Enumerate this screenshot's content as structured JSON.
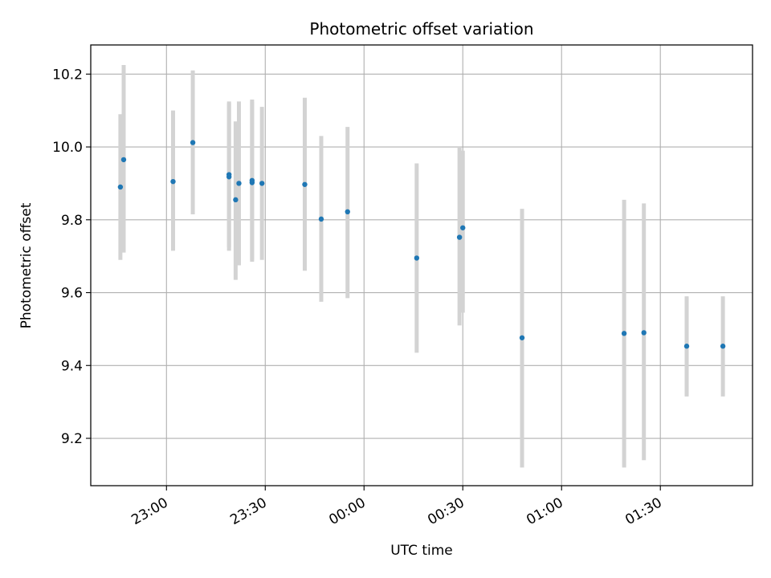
{
  "chart_data": {
    "type": "scatter",
    "title": "Photometric offset variation",
    "xlabel": "UTC time",
    "ylabel": "Photometric offset",
    "grid": true,
    "x_tick_labels": [
      "23:00",
      "23:30",
      "00:00",
      "00:30",
      "01:00",
      "01:30"
    ],
    "y_tick_labels": [
      "9.2",
      "9.4",
      "9.6",
      "9.8",
      "10.0",
      "10.2"
    ],
    "y_ticks": [
      9.2,
      9.4,
      9.6,
      9.8,
      10.0,
      10.2
    ],
    "xlim": [
      "22:37",
      "01:58"
    ],
    "ylim": [
      9.07,
      10.28
    ],
    "errorbar_color": "#d3d3d3",
    "marker_color": "#1f77b4",
    "points": [
      {
        "time": "22:46",
        "y": 9.89,
        "ylow": 9.69,
        "yhigh": 10.09
      },
      {
        "time": "22:47",
        "y": 9.965,
        "ylow": 9.71,
        "yhigh": 10.225
      },
      {
        "time": "23:02",
        "y": 9.905,
        "ylow": 9.715,
        "yhigh": 10.1
      },
      {
        "time": "23:08",
        "y": 10.012,
        "ylow": 9.815,
        "yhigh": 10.21
      },
      {
        "time": "23:19",
        "y": 9.918,
        "ylow": 9.715,
        "yhigh": 10.12
      },
      {
        "time": "23:19",
        "y": 9.924,
        "ylow": 9.725,
        "yhigh": 10.125
      },
      {
        "time": "23:21",
        "y": 9.855,
        "ylow": 9.635,
        "yhigh": 10.07
      },
      {
        "time": "23:22",
        "y": 9.9,
        "ylow": 9.675,
        "yhigh": 10.125
      },
      {
        "time": "23:26",
        "y": 9.902,
        "ylow": 9.685,
        "yhigh": 10.125
      },
      {
        "time": "23:26",
        "y": 9.908,
        "ylow": 9.69,
        "yhigh": 10.13
      },
      {
        "time": "23:29",
        "y": 9.9,
        "ylow": 9.69,
        "yhigh": 10.11
      },
      {
        "time": "23:42",
        "y": 9.897,
        "ylow": 9.66,
        "yhigh": 10.135
      },
      {
        "time": "23:47",
        "y": 9.802,
        "ylow": 9.575,
        "yhigh": 10.03
      },
      {
        "time": "23:55",
        "y": 9.822,
        "ylow": 9.585,
        "yhigh": 10.055
      },
      {
        "time": "00:16",
        "y": 9.695,
        "ylow": 9.435,
        "yhigh": 9.955
      },
      {
        "time": "00:29",
        "y": 9.752,
        "ylow": 9.51,
        "yhigh": 10.0
      },
      {
        "time": "00:30",
        "y": 9.778,
        "ylow": 9.545,
        "yhigh": 9.99
      },
      {
        "time": "00:48",
        "y": 9.476,
        "ylow": 9.12,
        "yhigh": 9.83
      },
      {
        "time": "01:19",
        "y": 9.488,
        "ylow": 9.12,
        "yhigh": 9.855
      },
      {
        "time": "01:25",
        "y": 9.49,
        "ylow": 9.14,
        "yhigh": 9.845
      },
      {
        "time": "01:38",
        "y": 9.453,
        "ylow": 9.315,
        "yhigh": 9.59
      },
      {
        "time": "01:49",
        "y": 9.453,
        "ylow": 9.315,
        "yhigh": 9.59
      }
    ]
  }
}
